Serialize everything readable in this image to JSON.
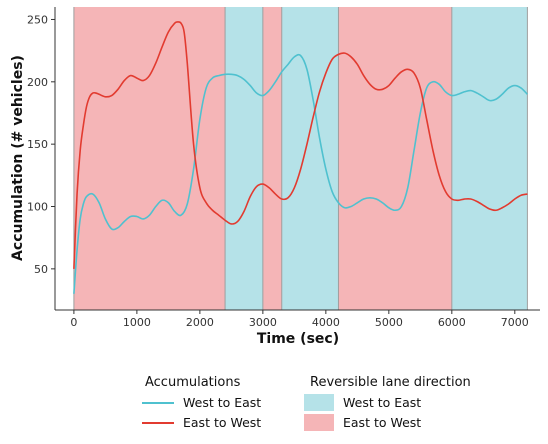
{
  "chart_data": {
    "type": "line",
    "xlabel": "Time (sec)",
    "ylabel": "Accumulation (# vehicles)",
    "xlim": [
      -300,
      7400
    ],
    "ylim": [
      17,
      260
    ],
    "xticks": [
      0,
      1000,
      2000,
      3000,
      4000,
      5000,
      6000,
      7000
    ],
    "yticks": [
      50,
      100,
      150,
      200,
      250
    ],
    "grid": false,
    "series": [
      {
        "name": "West to East",
        "color": "#4FC1CF",
        "x": [
          0,
          50,
          100,
          150,
          200,
          300,
          400,
          500,
          600,
          700,
          800,
          900,
          1000,
          1100,
          1200,
          1300,
          1400,
          1500,
          1600,
          1700,
          1800,
          1900,
          2000,
          2100,
          2200,
          2300,
          2400,
          2500,
          2600,
          2700,
          2800,
          2900,
          3000,
          3100,
          3200,
          3300,
          3400,
          3500,
          3600,
          3700,
          3800,
          3900,
          4000,
          4100,
          4200,
          4300,
          4400,
          4500,
          4600,
          4700,
          4800,
          4900,
          5000,
          5100,
          5200,
          5300,
          5400,
          5500,
          5600,
          5700,
          5800,
          5900,
          6000,
          6100,
          6200,
          6300,
          6400,
          6500,
          6600,
          6700,
          6800,
          6900,
          7000,
          7100,
          7200
        ],
        "y": [
          30,
          65,
          90,
          102,
          108,
          110,
          103,
          90,
          82,
          83,
          88,
          92,
          92,
          90,
          93,
          100,
          105,
          103,
          96,
          93,
          102,
          130,
          170,
          195,
          203,
          205,
          206,
          206,
          205,
          202,
          197,
          191,
          189,
          193,
          200,
          208,
          214,
          220,
          221,
          210,
          185,
          155,
          130,
          112,
          103,
          99,
          100,
          103,
          106,
          107,
          106,
          103,
          99,
          97,
          100,
          115,
          145,
          175,
          195,
          200,
          198,
          192,
          189,
          190,
          192,
          193,
          191,
          188,
          185,
          186,
          190,
          195,
          197,
          195,
          190
        ]
      },
      {
        "name": "East to West",
        "color": "#E23B30",
        "x": [
          0,
          50,
          100,
          150,
          200,
          250,
          300,
          350,
          400,
          500,
          600,
          700,
          800,
          900,
          1000,
          1100,
          1200,
          1300,
          1400,
          1500,
          1600,
          1650,
          1700,
          1750,
          1800,
          1900,
          2000,
          2100,
          2200,
          2300,
          2400,
          2500,
          2600,
          2700,
          2800,
          2900,
          3000,
          3100,
          3200,
          3300,
          3400,
          3500,
          3600,
          3700,
          3800,
          3900,
          4000,
          4100,
          4200,
          4300,
          4400,
          4500,
          4600,
          4700,
          4800,
          4900,
          5000,
          5100,
          5200,
          5300,
          5400,
          5500,
          5600,
          5700,
          5800,
          5900,
          6000,
          6100,
          6200,
          6300,
          6400,
          6500,
          6600,
          6700,
          6800,
          6900,
          7000,
          7100,
          7200
        ],
        "y": [
          50,
          110,
          145,
          165,
          180,
          188,
          191,
          191,
          190,
          188,
          189,
          194,
          201,
          205,
          203,
          201,
          205,
          215,
          228,
          240,
          247,
          248,
          247,
          240,
          215,
          150,
          115,
          103,
          97,
          93,
          89,
          86,
          88,
          96,
          108,
          116,
          118,
          115,
          110,
          106,
          107,
          115,
          130,
          150,
          172,
          192,
          207,
          218,
          222,
          223,
          220,
          214,
          205,
          198,
          194,
          194,
          197,
          203,
          208,
          210,
          207,
          195,
          170,
          145,
          125,
          112,
          106,
          105,
          106,
          106,
          104,
          101,
          98,
          97,
          99,
          102,
          106,
          109,
          110
        ]
      }
    ],
    "direction_periods": [
      {
        "start": 0,
        "end": 2400,
        "direction": "East to West"
      },
      {
        "start": 2400,
        "end": 3000,
        "direction": "West to East"
      },
      {
        "start": 3000,
        "end": 3300,
        "direction": "East to West"
      },
      {
        "start": 3300,
        "end": 4200,
        "direction": "West to East"
      },
      {
        "start": 4200,
        "end": 6000,
        "direction": "East to West"
      },
      {
        "start": 6000,
        "end": 7200,
        "direction": "West to East"
      }
    ],
    "region_colors": {
      "West to East": "#B5E2E8",
      "East to West": "#F5B5B7"
    },
    "legend": {
      "placement": "bottom",
      "accumulations_title": "Accumulations",
      "direction_title": "Reversible lane direction",
      "line_items": [
        "West to East",
        "East to West"
      ],
      "fill_items": [
        "West to East",
        "East to West"
      ]
    }
  }
}
